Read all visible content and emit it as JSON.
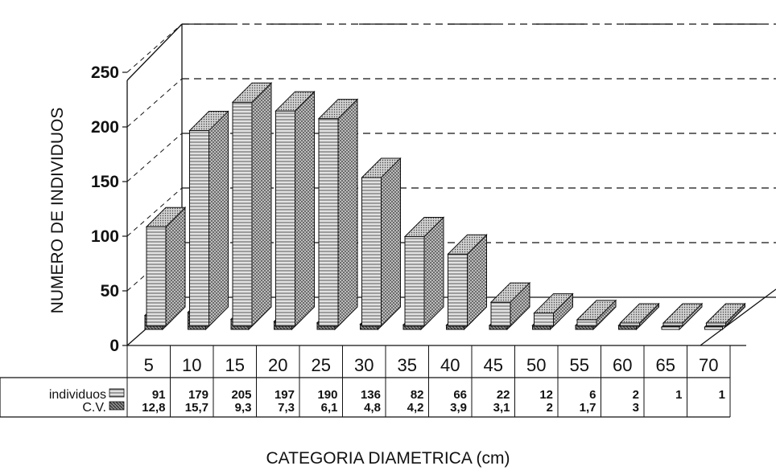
{
  "chart_data": {
    "type": "bar",
    "title": "",
    "xlabel": "CATEGORIA DIAMETRICA (cm)",
    "ylabel": "NUMERO DE INDIVIDUOS",
    "ylim": [
      0,
      250
    ],
    "yticks": [
      "0",
      "50",
      "100",
      "150",
      "200",
      "250"
    ],
    "categories": [
      "5",
      "10",
      "15",
      "20",
      "25",
      "30",
      "35",
      "40",
      "45",
      "50",
      "55",
      "60",
      "65",
      "70"
    ],
    "series": [
      {
        "name": "individuos",
        "values": [
          91,
          179,
          205,
          197,
          190,
          136,
          82,
          66,
          22,
          12,
          6,
          2,
          1,
          1
        ]
      },
      {
        "name": "C.V.",
        "values": [
          12.8,
          15.7,
          9.3,
          7.3,
          6.1,
          4.8,
          4.2,
          3.9,
          3.1,
          2,
          1.7,
          3,
          null,
          null
        ]
      }
    ],
    "table_rows": [
      {
        "label": "individuos",
        "cells": [
          "91",
          "179",
          "205",
          "197",
          "190",
          "136",
          "82",
          "66",
          "22",
          "12",
          "6",
          "2",
          "1",
          "1"
        ]
      },
      {
        "label": "C.V.",
        "cells": [
          "12,8",
          "15,7",
          "9,3",
          "7,3",
          "6,1",
          "4,8",
          "4,2",
          "3,9",
          "3,1",
          "2",
          "1,7",
          "3",
          "",
          ""
        ]
      }
    ],
    "style": "3d-bars",
    "grid": "dashed-horizontal",
    "legend": "data-table-below",
    "colors": {
      "individuos": "#d8d8d8",
      "cv": "#9a9a9a",
      "stroke": "#111111"
    }
  }
}
